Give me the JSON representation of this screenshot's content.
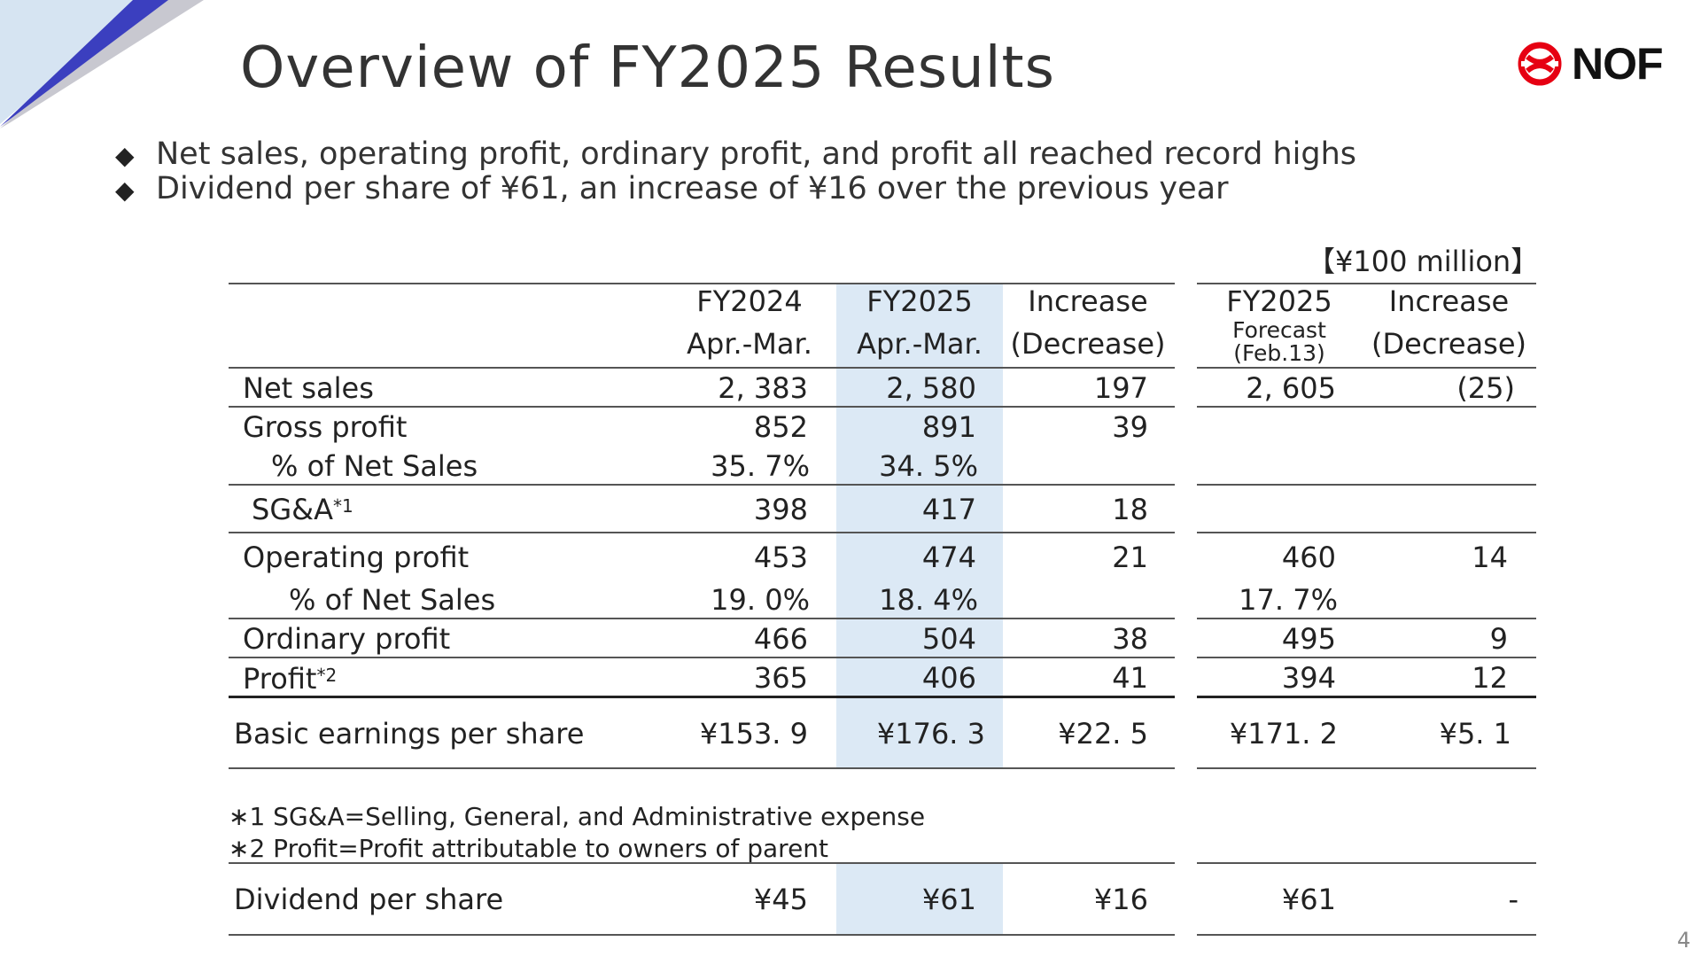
{
  "title": "Overview of FY2025 Results",
  "logo": {
    "text": "NOF",
    "icon": "nof-logo-icon",
    "color": "#e60012"
  },
  "bullets": [
    "Net sales, operating profit, ordinary profit, and profit all reached record highs",
    "Dividend per share of ¥61, an increase of ¥16 over the previous year"
  ],
  "unit": "【¥100 million】",
  "columns": {
    "fy2024": {
      "line1": "FY2024",
      "line2": "Apr.-Mar."
    },
    "fy2025": {
      "line1": "FY2025",
      "line2": "Apr.-Mar."
    },
    "increase": {
      "line1": "Increase",
      "line2": "(Decrease)"
    },
    "forecast": {
      "line1": "FY2025",
      "line2": "Forecast",
      "line3": "(Feb.13)"
    },
    "increase_forecast": {
      "line1": "Increase",
      "line2": "(Decrease)"
    }
  },
  "rows": {
    "net_sales": {
      "label": "Net sales",
      "fy2024": "2, 383",
      "fy2025": "2, 580",
      "increase": "197",
      "forecast": "2, 605",
      "vs_forecast": "(25)"
    },
    "gross_profit": {
      "label": "Gross profit",
      "fy2024": "852",
      "fy2025": "891",
      "increase": "39"
    },
    "gross_margin": {
      "label": "% of Net Sales",
      "fy2024": "35. 7%",
      "fy2025": "34. 5%"
    },
    "sga": {
      "label": "SG&A",
      "note_mark": "*1",
      "fy2024": "398",
      "fy2025": "417",
      "increase": "18"
    },
    "operating_profit": {
      "label": "Operating profit",
      "fy2024": "453",
      "fy2025": "474",
      "increase": "21",
      "forecast": "460",
      "vs_forecast": "14"
    },
    "operating_margin": {
      "label": "% of Net Sales",
      "fy2024": "19. 0%",
      "fy2025": "18. 4%",
      "forecast": "17. 7%"
    },
    "ordinary_profit": {
      "label": "Ordinary profit",
      "fy2024": "466",
      "fy2025": "504",
      "increase": "38",
      "forecast": "495",
      "vs_forecast": "9"
    },
    "profit": {
      "label": "Profit",
      "note_mark": "*2",
      "fy2024": "365",
      "fy2025": "406",
      "increase": "41",
      "forecast": "394",
      "vs_forecast": "12"
    },
    "eps": {
      "label": "Basic earnings per share",
      "fy2024": "¥153. 9",
      "fy2025": "¥176. 3",
      "increase": "¥22. 5",
      "forecast": "¥171. 2",
      "vs_forecast": "¥5. 1"
    },
    "dividend": {
      "label": "Dividend per share",
      "fy2024": "¥45",
      "fy2025": "¥61",
      "increase": "¥16",
      "forecast": "¥61",
      "vs_forecast": "-"
    }
  },
  "notes": [
    "∗1 SG&A=Selling, General, and Administrative expense",
    "∗2 Profit=Profit attributable to owners of parent"
  ],
  "page_number": "4",
  "colors": {
    "highlight": "#dce9f5",
    "accent_blue": "#3b3fbf",
    "light_blue": "#d6e4f2"
  }
}
